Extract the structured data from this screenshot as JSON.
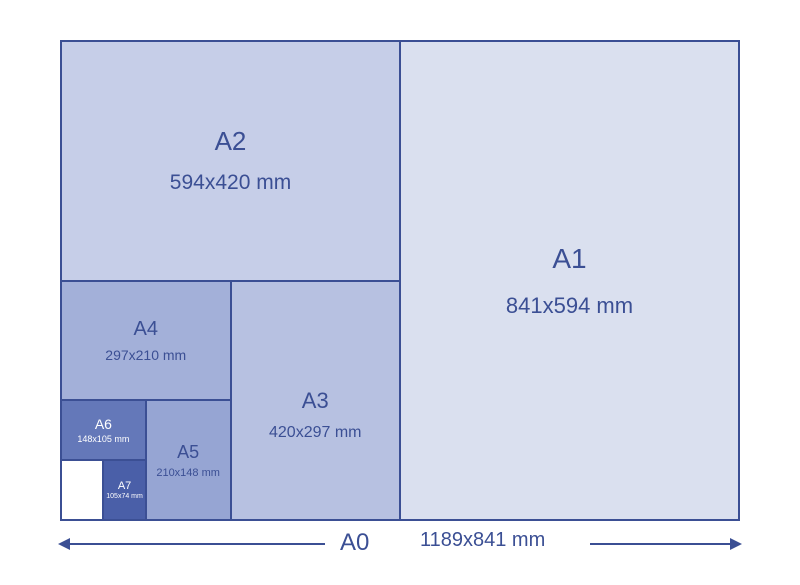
{
  "diagram": {
    "type": "infographic",
    "stage_border_color": "#3b4f94",
    "text_color": "#3b4f94",
    "arrow_color": "#3b4f94",
    "font_family": "sans-serif",
    "bottom_label_name": "A0",
    "bottom_label_dims": "1189x841 mm",
    "bottom_label_fontsize": 24,
    "panels": {
      "a1": {
        "name": "A1",
        "dims": "841x594 mm",
        "left_pct": 50,
        "top_pct": 0,
        "width_pct": 50,
        "height_pct": 100,
        "fill": "#dae0ef",
        "border": "#3b4f94",
        "name_fontsize": 28,
        "dims_fontsize": 22,
        "gap": 18
      },
      "a2": {
        "name": "A2",
        "dims": "594x420 mm",
        "left_pct": 0,
        "top_pct": 0,
        "width_pct": 50,
        "height_pct": 50,
        "fill": "#c6cee8",
        "border": "#3b4f94",
        "name_fontsize": 26,
        "dims_fontsize": 21,
        "gap": 14
      },
      "a3": {
        "name": "A3",
        "dims": "420x297 mm",
        "left_pct": 25,
        "top_pct": 50,
        "width_pct": 25,
        "height_pct": 50,
        "fill": "#b7c1e1",
        "border": "#3b4f94",
        "name_fontsize": 22,
        "dims_fontsize": 16,
        "gap": 10,
        "valign": "center",
        "halign": "center",
        "pad_top": 30
      },
      "a4": {
        "name": "A4",
        "dims": "297x210 mm",
        "left_pct": 0,
        "top_pct": 50,
        "width_pct": 25,
        "height_pct": 25,
        "fill": "#a3b0d9",
        "border": "#3b4f94",
        "name_fontsize": 20,
        "dims_fontsize": 14,
        "gap": 6
      },
      "a5": {
        "name": "A5",
        "dims": "210x148 mm",
        "left_pct": 12.5,
        "top_pct": 75,
        "width_pct": 12.5,
        "height_pct": 25,
        "fill": "#96a5d3",
        "border": "#3b4f94",
        "name_fontsize": 18,
        "dims_fontsize": 11,
        "gap": 4
      },
      "a6": {
        "name": "A6",
        "dims": "148x105 mm",
        "left_pct": 0,
        "top_pct": 75,
        "width_pct": 12.5,
        "height_pct": 12.5,
        "fill": "#6478b9",
        "border": "#3b4f94",
        "name_fontsize": 14,
        "dims_fontsize": 9,
        "gap": 2,
        "text_color": "#ffffff"
      },
      "a7": {
        "name": "A7",
        "dims": "105x74 mm",
        "left_pct": 6.25,
        "top_pct": 87.5,
        "width_pct": 6.25,
        "height_pct": 12.5,
        "fill": "#4a5fa8",
        "border": "#3b4f94",
        "name_fontsize": 11,
        "dims_fontsize": 7,
        "gap": 1,
        "text_color": "#ffffff"
      },
      "blank": {
        "name": "",
        "dims": "",
        "left_pct": 0,
        "top_pct": 87.5,
        "width_pct": 6.25,
        "height_pct": 12.5,
        "fill": "#ffffff",
        "border": "#3b4f94",
        "name_fontsize": 0,
        "dims_fontsize": 0,
        "gap": 0
      }
    }
  }
}
